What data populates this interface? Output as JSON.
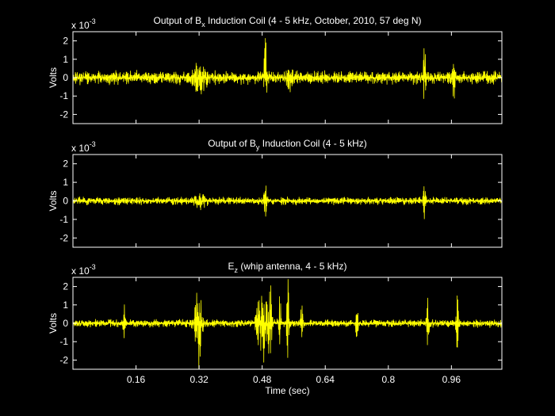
{
  "figure": {
    "background": "#000000",
    "axis_color": "#ffffff",
    "signal_color": "#ffff00"
  },
  "chart_data": [
    {
      "type": "line",
      "title_parts": [
        "Output of B",
        "x",
        " Induction Coil (4 - 5 kHz, October, 2010, 57 deg N)"
      ],
      "ylabel": "Volts",
      "exponent_label": {
        "base": "x 10",
        "exp": "-3"
      },
      "xlim": [
        0,
        1.088
      ],
      "ylim": [
        -2.5,
        2.5
      ],
      "yticks": [
        -2,
        -1,
        0,
        1,
        2
      ],
      "xticks": [
        0.16,
        0.32,
        0.48,
        0.64,
        0.8,
        0.96
      ],
      "show_xtick_labels": false,
      "series": [
        {
          "color": "#ffff00",
          "noise_amplitude": 0.3,
          "events": [
            {
              "t": 0.32,
              "amp": 0.7,
              "width": 0.018
            },
            {
              "t": 0.488,
              "amp": 2.0,
              "width": 0.004
            },
            {
              "t": 0.55,
              "amp": 0.5,
              "width": 0.01
            },
            {
              "t": 0.892,
              "amp": 1.9,
              "width": 0.003
            },
            {
              "t": 0.966,
              "amp": 1.6,
              "width": 0.003
            }
          ]
        }
      ]
    },
    {
      "type": "line",
      "title_parts": [
        "Output of B",
        "y",
        " Induction Coil (4 - 5 kHz)"
      ],
      "ylabel": "Volts",
      "exponent_label": {
        "base": "x 10",
        "exp": "-3"
      },
      "xlim": [
        0,
        1.088
      ],
      "ylim": [
        -2.5,
        2.5
      ],
      "yticks": [
        -2,
        -1,
        0,
        1,
        2
      ],
      "xticks": [
        0.16,
        0.32,
        0.48,
        0.64,
        0.8,
        0.96
      ],
      "show_xtick_labels": false,
      "series": [
        {
          "color": "#ffff00",
          "noise_amplitude": 0.18,
          "events": [
            {
              "t": 0.32,
              "amp": 0.3,
              "width": 0.015
            },
            {
              "t": 0.488,
              "amp": 0.9,
              "width": 0.004
            },
            {
              "t": 0.892,
              "amp": 1.1,
              "width": 0.003
            }
          ]
        }
      ]
    },
    {
      "type": "line",
      "title_parts": [
        "E",
        "z",
        " (whip antenna, 4 - 5 kHz)"
      ],
      "ylabel": "Volts",
      "xlabel": "Time (sec)",
      "exponent_label": {
        "base": "x 10",
        "exp": "-3"
      },
      "xlim": [
        0,
        1.088
      ],
      "ylim": [
        -2.5,
        2.5
      ],
      "yticks": [
        -2,
        -1,
        0,
        1,
        2
      ],
      "xticks": [
        0.16,
        0.32,
        0.48,
        0.64,
        0.8,
        0.96
      ],
      "show_xtick_labels": true,
      "series": [
        {
          "color": "#ffff00",
          "noise_amplitude": 0.18,
          "events": [
            {
              "t": 0.13,
              "amp": 1.1,
              "width": 0.003
            },
            {
              "t": 0.318,
              "amp": 2.6,
              "width": 0.008
            },
            {
              "t": 0.48,
              "amp": 2.4,
              "width": 0.012
            },
            {
              "t": 0.5,
              "amp": 2.6,
              "width": 0.004
            },
            {
              "t": 0.525,
              "amp": 1.5,
              "width": 0.003
            },
            {
              "t": 0.545,
              "amp": 2.6,
              "width": 0.003
            },
            {
              "t": 0.58,
              "amp": 1.2,
              "width": 0.003
            },
            {
              "t": 0.72,
              "amp": 0.9,
              "width": 0.003
            },
            {
              "t": 0.9,
              "amp": 2.6,
              "width": 0.003
            },
            {
              "t": 0.975,
              "amp": 1.4,
              "width": 0.003
            }
          ]
        }
      ]
    }
  ]
}
